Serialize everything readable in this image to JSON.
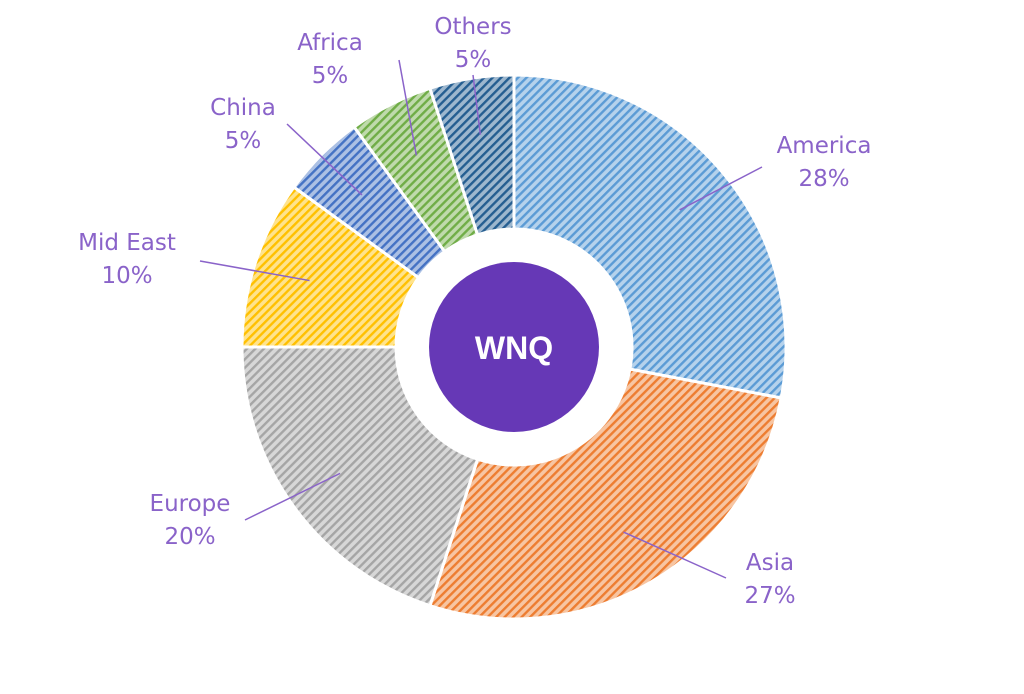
{
  "center": {
    "label": "WNQ",
    "color": "#6638b6"
  },
  "chart_data": {
    "type": "pie",
    "variant": "donut",
    "start": "top",
    "direction": "clockwise",
    "fill_pattern": "diagonal-hatch",
    "label_color": "#8a63c9",
    "slices": [
      {
        "name": "America",
        "value": 28,
        "label": "28%",
        "color": "#5b9bd5"
      },
      {
        "name": "Asia",
        "value": 27,
        "label": "27%",
        "color": "#ed7d31"
      },
      {
        "name": "Europe",
        "value": 20,
        "label": "20%",
        "color": "#a5a5a5"
      },
      {
        "name": "Mid East",
        "value": 10,
        "label": "10%",
        "color": "#ffc000"
      },
      {
        "name": "China",
        "value": 5,
        "label": "5%",
        "color": "#4472c4"
      },
      {
        "name": "Africa",
        "value": 5,
        "label": "5%",
        "color": "#70ad47"
      },
      {
        "name": "Others",
        "value": 5,
        "label": "5%",
        "color": "#255e91"
      }
    ]
  }
}
